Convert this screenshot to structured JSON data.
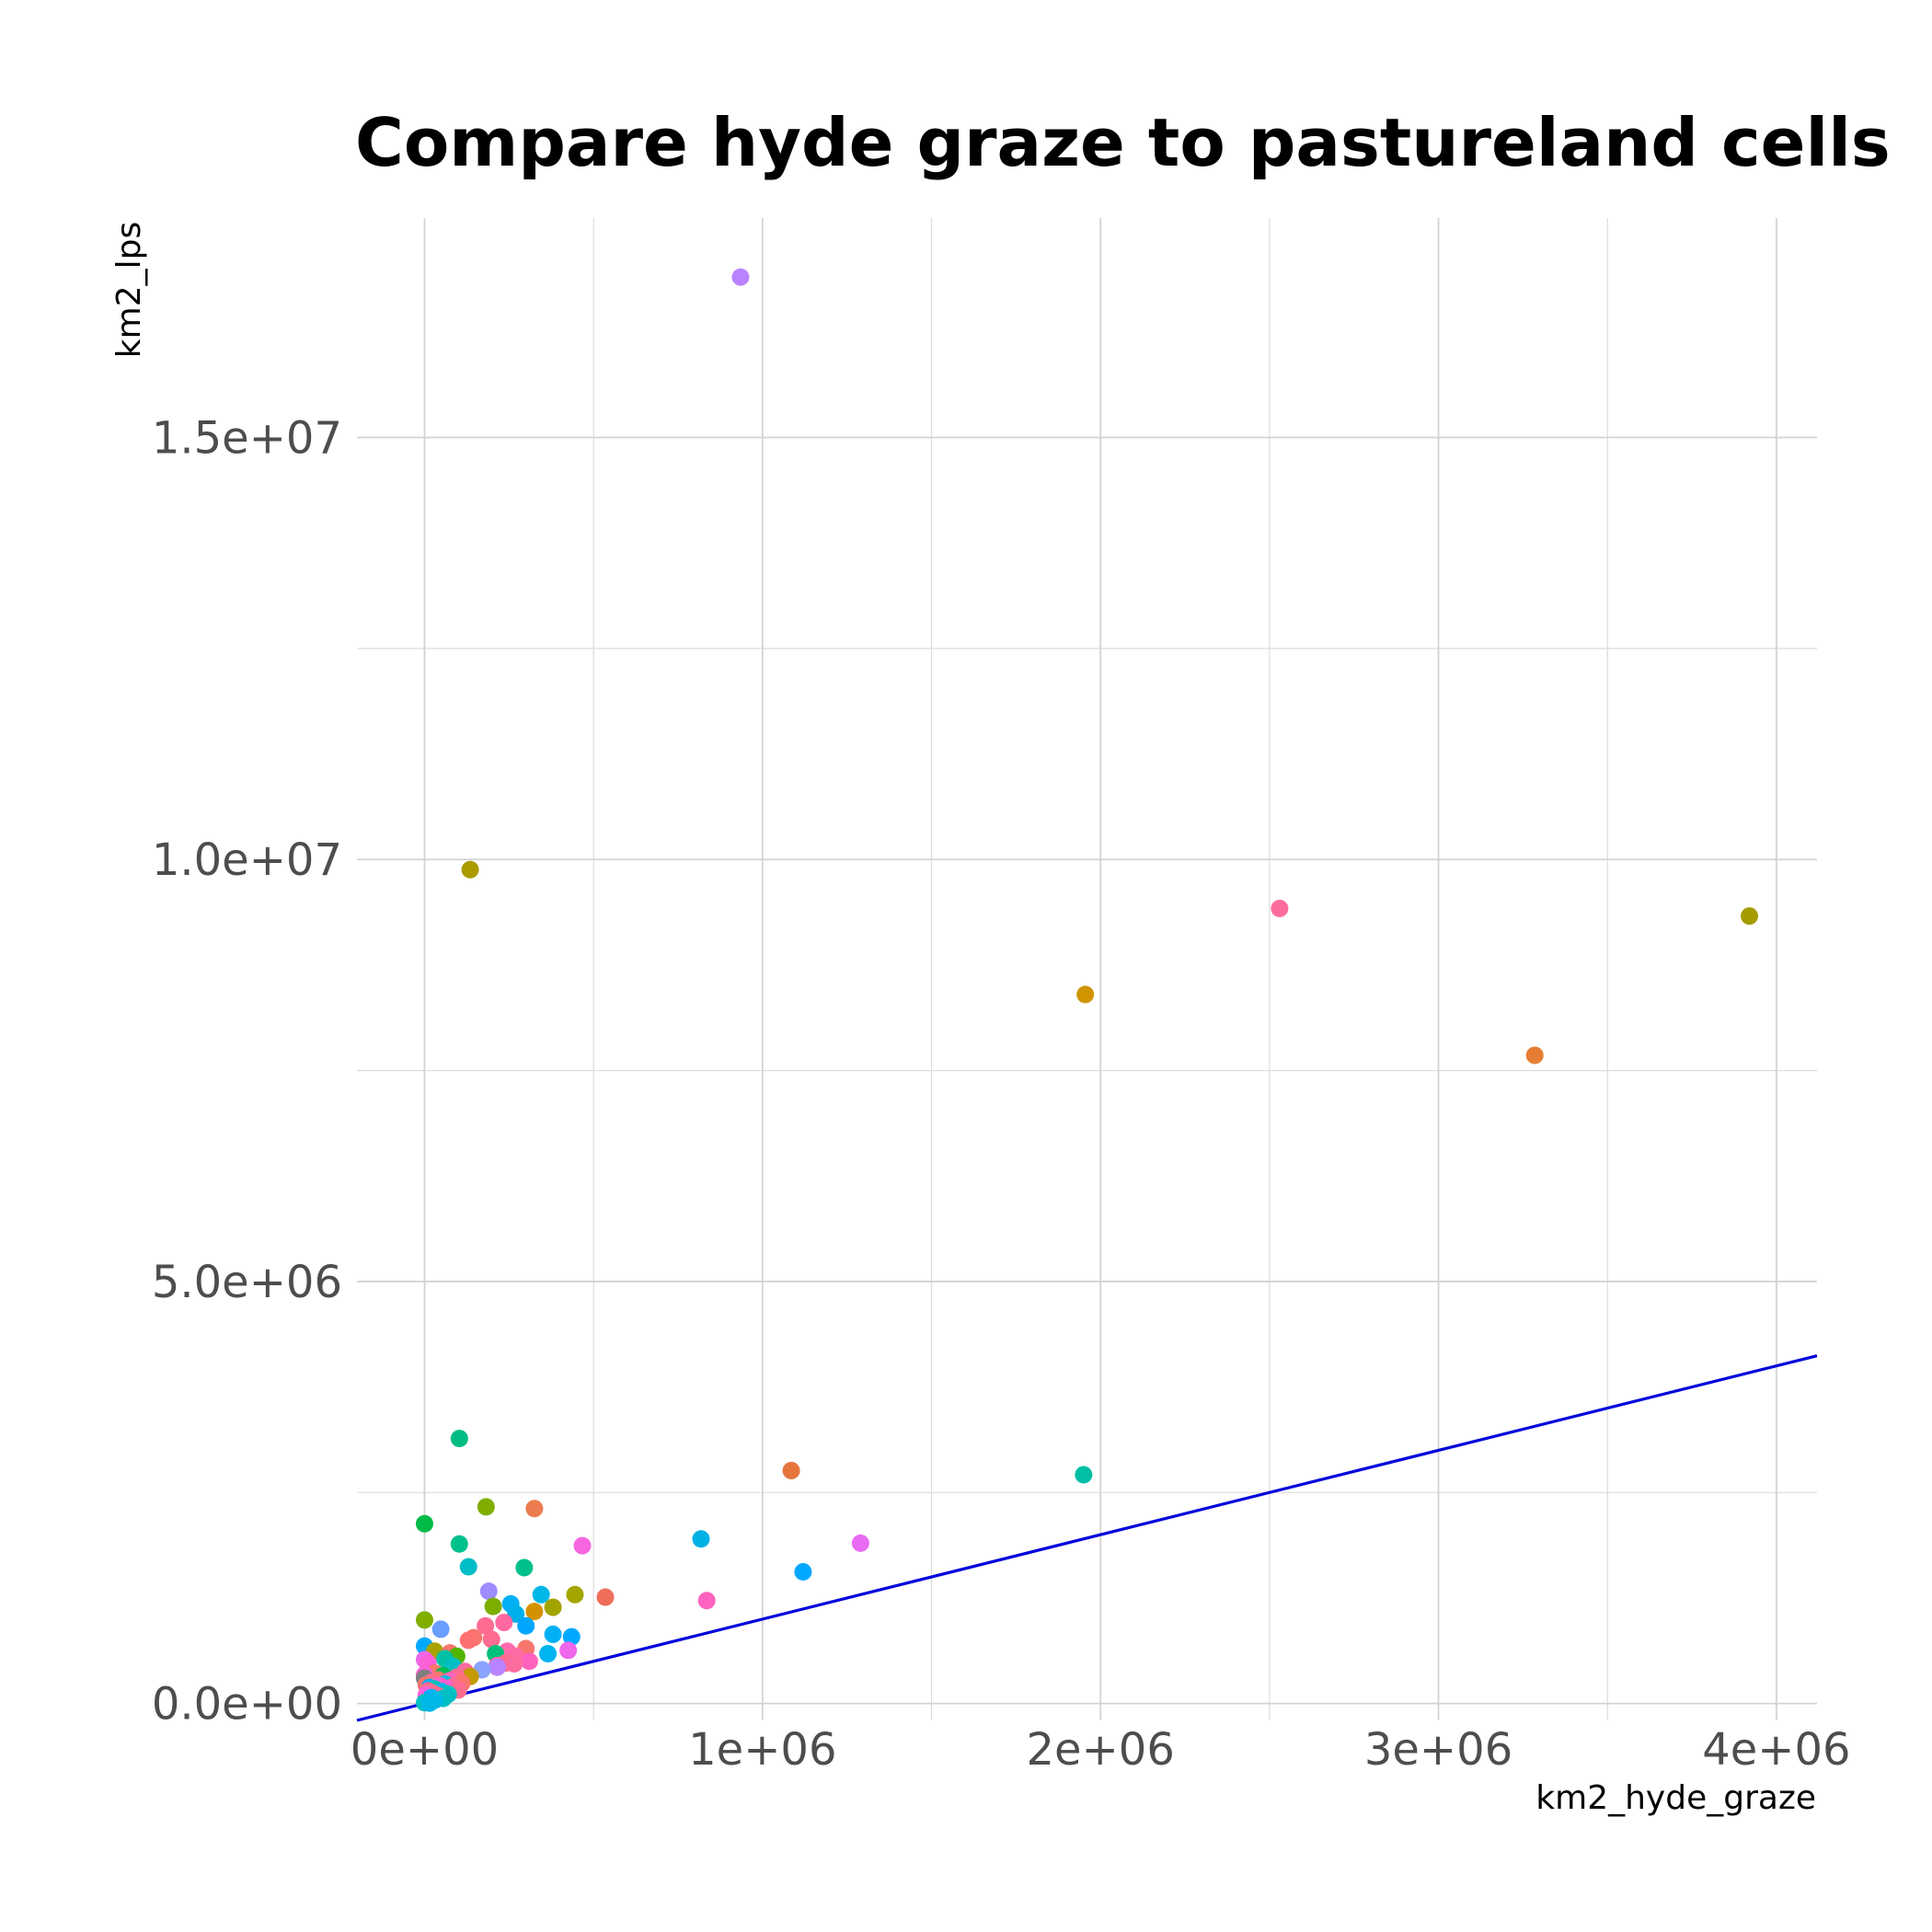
{
  "chart_data": {
    "type": "scatter",
    "title": "Compare hyde graze to pastureland cells",
    "xlabel": "km2_hyde_graze",
    "ylabel": "km2_lps",
    "xlim": [
      -200000,
      4120000
    ],
    "ylim": [
      -200000,
      17600000
    ],
    "x_ticks": [
      0,
      1000000,
      2000000,
      3000000,
      4000000
    ],
    "x_tick_labels": [
      "0e+00",
      "1e+06",
      "2e+06",
      "3e+06",
      "4e+06"
    ],
    "y_ticks": [
      0,
      5000000,
      10000000,
      15000000
    ],
    "y_tick_labels": [
      "0.0e+00",
      "5.0e+06",
      "1.0e+07",
      "1.5e+07"
    ],
    "grid": true,
    "reference_line": {
      "slope": 1,
      "intercept": 0,
      "color": "#0000dd"
    },
    "points": [
      {
        "x": 935000,
        "y": 16900000,
        "color": "#b983ff"
      },
      {
        "x": 135000,
        "y": 9880000,
        "color": "#aa9a00"
      },
      {
        "x": 2530000,
        "y": 9420000,
        "color": "#fd6c9e"
      },
      {
        "x": 3920000,
        "y": 9330000,
        "color": "#a59b00"
      },
      {
        "x": 1955000,
        "y": 8400000,
        "color": "#cf9400"
      },
      {
        "x": 3285000,
        "y": 7680000,
        "color": "#e57e33"
      },
      {
        "x": 103000,
        "y": 3140000,
        "color": "#00bc84"
      },
      {
        "x": 1085000,
        "y": 2760000,
        "color": "#e5743d"
      },
      {
        "x": 1950000,
        "y": 2710000,
        "color": "#00bfa5"
      },
      {
        "x": 182000,
        "y": 2330000,
        "color": "#7fae00"
      },
      {
        "x": 325000,
        "y": 2310000,
        "color": "#ec7c4f"
      },
      {
        "x": 0,
        "y": 2130000,
        "color": "#00ba46"
      },
      {
        "x": 818000,
        "y": 1950000,
        "color": "#00b1e6"
      },
      {
        "x": 103000,
        "y": 1890000,
        "color": "#00c08b"
      },
      {
        "x": 1290000,
        "y": 1900000,
        "color": "#e76bf3"
      },
      {
        "x": 467000,
        "y": 1870000,
        "color": "#f766e1"
      },
      {
        "x": 130000,
        "y": 1620000,
        "color": "#00bdc7"
      },
      {
        "x": 295000,
        "y": 1610000,
        "color": "#00c08d"
      },
      {
        "x": 1120000,
        "y": 1560000,
        "color": "#00a9ff"
      },
      {
        "x": 190000,
        "y": 1330000,
        "color": "#9d8dff"
      },
      {
        "x": 345000,
        "y": 1290000,
        "color": "#00b7e8"
      },
      {
        "x": 445000,
        "y": 1290000,
        "color": "#a3a500"
      },
      {
        "x": 535000,
        "y": 1260000,
        "color": "#ef6d5b"
      },
      {
        "x": 835000,
        "y": 1220000,
        "color": "#ff62c0"
      },
      {
        "x": 255000,
        "y": 1180000,
        "color": "#00b0f6"
      },
      {
        "x": 203000,
        "y": 1150000,
        "color": "#7cae00"
      },
      {
        "x": 380000,
        "y": 1140000,
        "color": "#a3a300"
      },
      {
        "x": 325000,
        "y": 1090000,
        "color": "#d39200"
      },
      {
        "x": 270000,
        "y": 1060000,
        "color": "#00b0ea"
      },
      {
        "x": 0,
        "y": 990000,
        "color": "#7fae00"
      },
      {
        "x": 235000,
        "y": 960000,
        "color": "#ff68a1"
      },
      {
        "x": 300000,
        "y": 920000,
        "color": "#00a5ff"
      },
      {
        "x": 180000,
        "y": 920000,
        "color": "#ff6c91"
      },
      {
        "x": 48000,
        "y": 880000,
        "color": "#6b9dff"
      },
      {
        "x": 380000,
        "y": 820000,
        "color": "#00b0f6"
      },
      {
        "x": 435000,
        "y": 790000,
        "color": "#00a9ff"
      },
      {
        "x": 145000,
        "y": 780000,
        "color": "#f8766d"
      },
      {
        "x": 198000,
        "y": 760000,
        "color": "#ff6c91"
      },
      {
        "x": 130000,
        "y": 750000,
        "color": "#ff7171"
      },
      {
        "x": 0,
        "y": 680000,
        "color": "#00a9ff"
      },
      {
        "x": 300000,
        "y": 650000,
        "color": "#f8766d"
      },
      {
        "x": 425000,
        "y": 630000,
        "color": "#ef67eb"
      },
      {
        "x": 245000,
        "y": 620000,
        "color": "#fd6cae"
      },
      {
        "x": 30000,
        "y": 620000,
        "color": "#aaa200"
      },
      {
        "x": 75000,
        "y": 600000,
        "color": "#f8766d"
      },
      {
        "x": 365000,
        "y": 590000,
        "color": "#00b4f0"
      },
      {
        "x": 210000,
        "y": 590000,
        "color": "#00c07b"
      },
      {
        "x": 95000,
        "y": 560000,
        "color": "#53b400"
      },
      {
        "x": 270000,
        "y": 560000,
        "color": "#ff6ca5"
      },
      {
        "x": 60000,
        "y": 530000,
        "color": "#00c1a3"
      },
      {
        "x": 0,
        "y": 520000,
        "color": "#ef67eb"
      },
      {
        "x": 310000,
        "y": 500000,
        "color": "#ff62bc"
      },
      {
        "x": 10000,
        "y": 480000,
        "color": "#fb61d7"
      },
      {
        "x": 240000,
        "y": 480000,
        "color": "#ff6c91"
      },
      {
        "x": 265000,
        "y": 470000,
        "color": "#fd6c9e"
      },
      {
        "x": 215000,
        "y": 450000,
        "color": "#ff66a8"
      },
      {
        "x": 85000,
        "y": 440000,
        "color": "#00bfc4"
      },
      {
        "x": 215000,
        "y": 430000,
        "color": "#b983ff"
      },
      {
        "x": 170000,
        "y": 400000,
        "color": "#8aa4ff"
      },
      {
        "x": 120000,
        "y": 380000,
        "color": "#fd6c9e"
      },
      {
        "x": 30000,
        "y": 360000,
        "color": "#f8766d"
      },
      {
        "x": 0,
        "y": 340000,
        "color": "#fb61d7"
      },
      {
        "x": 55000,
        "y": 330000,
        "color": "#00bc56"
      },
      {
        "x": 135000,
        "y": 320000,
        "color": "#c49a00"
      },
      {
        "x": 95000,
        "y": 310000,
        "color": "#ff6c91"
      },
      {
        "x": 0,
        "y": 300000,
        "color": "#7f7f7f"
      },
      {
        "x": 40000,
        "y": 280000,
        "color": "#f8766d"
      },
      {
        "x": 75000,
        "y": 270000,
        "color": "#ff62bc"
      },
      {
        "x": 20000,
        "y": 250000,
        "color": "#ff6c91"
      },
      {
        "x": 110000,
        "y": 240000,
        "color": "#f8766d"
      },
      {
        "x": 60000,
        "y": 230000,
        "color": "#00bcd8"
      },
      {
        "x": 5000,
        "y": 220000,
        "color": "#f8766d"
      },
      {
        "x": 45000,
        "y": 210000,
        "color": "#ff61c9"
      },
      {
        "x": 85000,
        "y": 200000,
        "color": "#ff6c91"
      },
      {
        "x": 15000,
        "y": 190000,
        "color": "#00b0f6"
      },
      {
        "x": 65000,
        "y": 180000,
        "color": "#fd61d1"
      },
      {
        "x": 30000,
        "y": 170000,
        "color": "#00c0b8"
      },
      {
        "x": 100000,
        "y": 160000,
        "color": "#ff6c91"
      },
      {
        "x": 10000,
        "y": 150000,
        "color": "#ff6c91"
      },
      {
        "x": 50000,
        "y": 140000,
        "color": "#00b8e7"
      },
      {
        "x": 25000,
        "y": 120000,
        "color": "#ff6c91"
      },
      {
        "x": 70000,
        "y": 110000,
        "color": "#00bfc4"
      },
      {
        "x": 5000,
        "y": 100000,
        "color": "#fb61d7"
      },
      {
        "x": 40000,
        "y": 90000,
        "color": "#ff6c91"
      },
      {
        "x": 20000,
        "y": 70000,
        "color": "#00b0f6"
      },
      {
        "x": 55000,
        "y": 60000,
        "color": "#00bfc4"
      },
      {
        "x": 30000,
        "y": 40000,
        "color": "#00b8e7"
      },
      {
        "x": 10000,
        "y": 30000,
        "color": "#00b0f6"
      },
      {
        "x": 0,
        "y": 10000,
        "color": "#00bfc4"
      },
      {
        "x": 15000,
        "y": 5000,
        "color": "#00b8e7"
      }
    ]
  }
}
